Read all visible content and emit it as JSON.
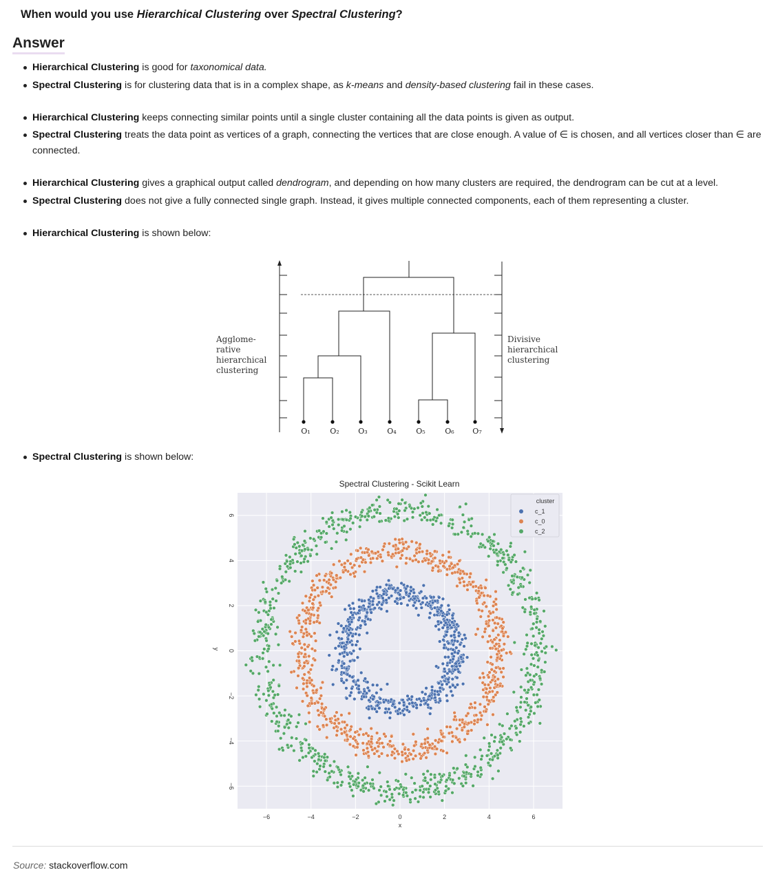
{
  "question": {
    "prefix": "When would you use ",
    "term1": "Hierarchical Clustering",
    "mid": " over ",
    "term2": "Spectral Clustering",
    "suffix": "?"
  },
  "answer_heading": "Answer",
  "bullets": [
    {
      "parts": [
        {
          "b": "Hierarchical Clustering"
        },
        {
          "t": " is good for "
        },
        {
          "i": "taxonomical data."
        }
      ]
    },
    {
      "parts": [
        {
          "b": "Spectral Clustering"
        },
        {
          "t": " is for clustering data that is in a complex shape, as "
        },
        {
          "i": "k-means"
        },
        {
          "t": " and "
        },
        {
          "i": "density-based clustering"
        },
        {
          "t": " fail in these cases."
        }
      ]
    },
    {
      "parts": [
        {
          "b": "Hierarchical Clustering"
        },
        {
          "t": " keeps connecting similar points until a single cluster containing all the data points is given as output."
        }
      ]
    },
    {
      "parts": [
        {
          "b": "Spectral Clustering"
        },
        {
          "t": " treats the data point as vertices of a graph, connecting the vertices that are close enough. A value of ∈ is chosen, and all vertices closer than ∈ are connected."
        }
      ]
    },
    {
      "parts": [
        {
          "b": "Hierarchical Clustering"
        },
        {
          "t": " gives a graphical output called "
        },
        {
          "i": "dendrogram"
        },
        {
          "t": ", and depending on how many clusters are required, the dendrogram can be cut at a level."
        }
      ]
    },
    {
      "parts": [
        {
          "b": "Spectral Clustering"
        },
        {
          "t": " does not give a fully connected single graph. Instead, it gives multiple connected components, each of them representing a cluster."
        }
      ]
    },
    {
      "parts": [
        {
          "b": "Hierarchical Clustering"
        },
        {
          "t": " is shown below:"
        }
      ]
    },
    {
      "parts": [
        {
          "b": "Spectral Clustering"
        },
        {
          "t": " is shown below:"
        }
      ]
    }
  ],
  "dendrogram": {
    "left_label": [
      "Agglome-",
      "rative",
      "hierarchical",
      "clustering"
    ],
    "right_label": [
      "Divisive",
      "hierarchical",
      "clustering"
    ],
    "leaves": [
      "O₁",
      "O₂",
      "O₃",
      "O₄",
      "O₅",
      "O₆",
      "O₇"
    ]
  },
  "chart_data": {
    "type": "scatter",
    "title": "Spectral Clustering - Scikit Learn",
    "xlabel": "x",
    "ylabel": "y",
    "xlim": [
      -7.3,
      7.3
    ],
    "ylim": [
      -7.0,
      7.0
    ],
    "xticks": [
      -6,
      -4,
      -2,
      0,
      2,
      4,
      6
    ],
    "yticks": [
      6,
      4,
      2,
      0,
      -2,
      -4,
      -6
    ],
    "grid": true,
    "legend": {
      "title": "cluster",
      "placement": "top-right"
    },
    "series": [
      {
        "name": "c_1",
        "color": "#4c72b0",
        "ring_radius": 2.5,
        "ring_width": 0.55,
        "count": 700
      },
      {
        "name": "c_0",
        "color": "#dd8452",
        "ring_radius": 4.4,
        "ring_width": 0.55,
        "count": 800
      },
      {
        "name": "c_2",
        "color": "#55a868",
        "ring_radius": 6.2,
        "ring_width": 0.6,
        "count": 900
      }
    ]
  },
  "source": {
    "label": "Source:",
    "site": "stackoverflow.com"
  }
}
